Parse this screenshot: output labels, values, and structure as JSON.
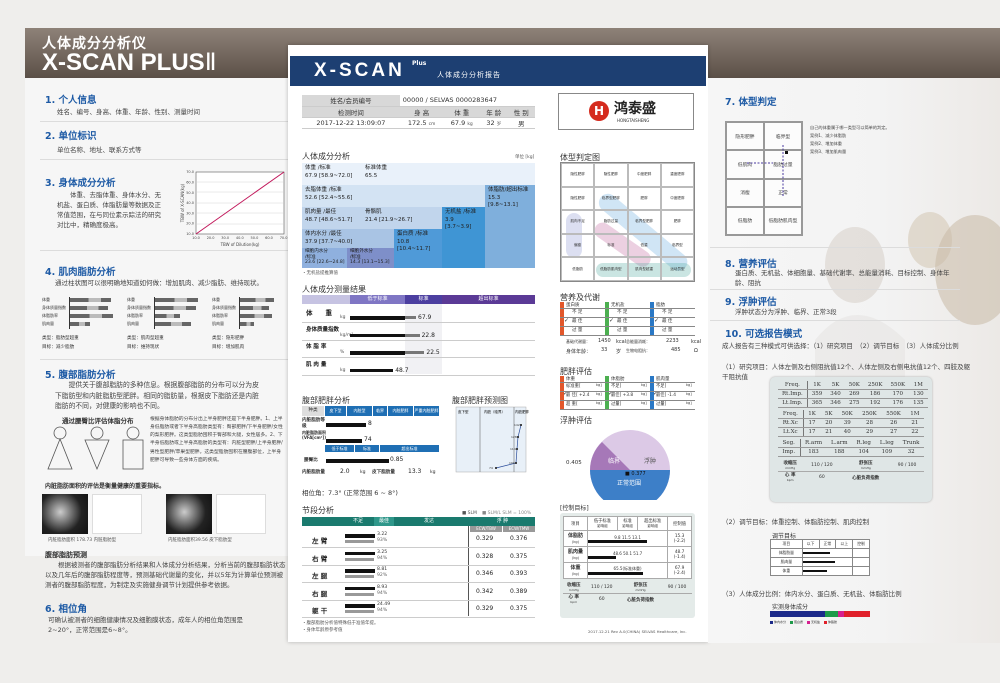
{
  "header": {
    "subtitle": "人体成分分析仪",
    "title": "X-SCAN PLUS",
    "roman": "Ⅱ"
  },
  "left": {
    "s1": {
      "title": "1. 个人信息",
      "text": "姓名、编号、身高、体重、年龄、性别、测量时间"
    },
    "s2": {
      "title": "2. 单位标识",
      "text": "单位名称、地址、联系方式等"
    },
    "s3": {
      "title": "3. 身体成分分析",
      "text": "体重、去脂体重、身体水分、无机盐、蛋白质、体脂肪量等数据及正常值范围，在与同位素示踪法的研究对比中，精确度极高。",
      "chart_xlabel": "TBW of Dilution(kg)",
      "chart_ylabel": "TBW of X-SCAN(kg)",
      "ticks": [
        "10.0",
        "20.0",
        "30.0",
        "40.0",
        "50.0",
        "60.0",
        "70.0"
      ]
    },
    "s4": {
      "title": "4. 肌肉脂肪分析",
      "text": "通过柱状图可以很明确地知道如何做：增加肌肉、减少脂肪、维持现状。",
      "rows": [
        "体重",
        "身体质量指数",
        "体脂肪率",
        "肌肉量"
      ],
      "cases": [
        {
          "type": "类型：脂肪型超重",
          "goal": "目标：减少脂肪",
          "vals": [
            0.9,
            0.85,
            0.95,
            0.45
          ]
        },
        {
          "type": "类型：肌肉型超重",
          "goal": "目标：维持现状",
          "vals": [
            0.95,
            0.9,
            0.55,
            0.8
          ]
        },
        {
          "type": "类型：隐形肥胖",
          "goal": "目标：增加肌肉",
          "vals": [
            0.75,
            0.65,
            0.7,
            0.3
          ]
        }
      ]
    },
    "s5": {
      "title": "5. 腹部脂肪分析",
      "text": "提供关于腹部脂肪的多种信息。根据腹部脂肪的分布可以分为皮下脂肪型和内脏脂肪型肥胖。相同的脂肪量，根据皮下脂肪还是内脏脂肪的不同，对健康的影响也不同。",
      "sub": "通过腰臀比评估体脂分布",
      "side": "根据身体脂肪的分布分出上半身肥胖还是下半身肥胖。1、上半身低脂肪或者下半身高脂肪类型有：臀部肥胖/下半身肥胖/女性的梨形肥胖。这类型脂肪囤积于臀部和大腿，女性居多。2、下半身低脂肪或上半身高脂肪的类型有：内脏型肥胖/上半身肥胖/男性型肥胖/苹果型肥胖。这类型脂肪囤积在腰腹部位，上半身肥胖可导致一些身体方面的疾病。",
      "vfa_title": "内脏脂肪面积的评估是衡量健康的重要指标。",
      "cap1": "内脏脂肪面积 178.73 内脏脂肪型",
      "cap2": "内脏脂肪面积39.56 皮下脂肪型",
      "pred_title": "腹部脂肪预测",
      "pred_text": "根据被测者的腹部脂肪分析结果和人体成分分析结果，分析当前的腹部脂肪状态以及几年后的腹部脂肪程度等，预测基础代谢量的变化，并以5年为计算单位预测被测者的腹部脂肪程度，为制定及实施健身调节计划提供参考依据。"
    },
    "s6": {
      "title": "6. 相位角",
      "text": "可确认被测者的细胞健康情况及细胞膜状态，成年人的相位角范围是2~20°，正常范围是6~8°。"
    }
  },
  "report": {
    "brand": "X-SCAN",
    "plus": "Plus",
    "title": "人体成分分析报告",
    "info": {
      "name_label": "姓名/会员编号",
      "name": "00000 / SELVAS 0000283647",
      "time_label": "检测时间",
      "time": "2017-12-22  13:09:07",
      "h_label": "身 高",
      "h": "172.5",
      "h_unit": "cm",
      "w_label": "体 重",
      "w": "67.9",
      "w_unit": "kg",
      "age_label": "年 龄",
      "age": "32",
      "age_unit": "岁",
      "sex_label": "性 别",
      "sex": "男"
    },
    "logo": {
      "name": "鸿泰盛",
      "sub": "HONGTAISHENG"
    },
    "comp": {
      "title": "人体成分分析",
      "unit": "单位 [kg]",
      "footnote": "・无机盐提推算值",
      "weight": "体重 /标准",
      "weight_v": "67.9 [58.9~72.0]",
      "std": "标准体重",
      "std_v": "65.5",
      "ffm": "去脂体重 /标准",
      "ffm_v": "52.6 [52.4~55.6]",
      "fat": "体脂肪/超出标准",
      "fat_v": "15.3",
      "fat_r": "[9.8~13.1]",
      "muscle": "肌肉量 /最佳",
      "muscle_v": "48.7 [48.6~51.7]",
      "smm": "骨骼肌",
      "smm_v": "21.4 [21.9~26.7]",
      "min": "无机盐 /标准",
      "min_v": "3.9",
      "min_r": "[3.7~3.9]",
      "tbw": "体内水分 /最佳",
      "tbw_v": "37.9 [37.7~40.0]",
      "prot": "蛋白质 /标准",
      "prot_v": "10.8",
      "prot_r": "[10.4~11.7]",
      "icw": "细胞内水分",
      "icw_s": "/标准",
      "icw_v": "23.6 [22.6~24.8]",
      "ecw": "细胞外水分",
      "ecw_s": "/标准",
      "ecw_v": "14.3 [13.1~15.3]"
    },
    "result": {
      "title": "人体成分测量结果",
      "heads": [
        "低于标准",
        "标准",
        "超出标准"
      ],
      "rows": [
        {
          "label": "体　　重",
          "unit": "kg",
          "value": "67.9",
          "frac": 0.55
        },
        {
          "label": "身体质量指数",
          "unit": "kg/m²",
          "value": "22.8",
          "frac": 0.58
        },
        {
          "label": "体 脂 率",
          "unit": "%",
          "value": "22.5",
          "frac": 0.62
        },
        {
          "label": "肌 肉 量",
          "unit": "kg",
          "value": "48.7",
          "frac": 0.36
        }
      ]
    },
    "abd": {
      "title": "腹部肥胖分析",
      "kind": "种类",
      "heads": [
        "皮下型",
        "内脏型",
        "临界",
        "内脏肥胖",
        "严重内脏肥胖"
      ],
      "r1": "内脏脂肪等级",
      "r1v": "8",
      "r2": "内脏脂肪面积(VFA[cm²])",
      "r2v": "74",
      "heads2": [
        "低于标准",
        "标准",
        "超出标准"
      ],
      "r3": "腰臀比",
      "r3v": "0.85",
      "r4": "内脏脂肪量",
      "r4v": "2.0",
      "r4u": "kg",
      "r5": "皮下脂肪量",
      "r5v": "13.3",
      "r5u": "kg"
    },
    "pred": {
      "title": "腹部肥胖预测图",
      "labels": [
        "皮下型",
        "内脏（临界）",
        "内脏肥胖"
      ],
      "points": [
        74,
        100,
        114,
        128,
        142
      ]
    },
    "phase": "相位角：7.3° (正常范围 6 ~ 8°)",
    "seg": {
      "title": "节段分析",
      "legend1": "■ SLM",
      "legend2": "■ SLM/L SLM = 100%",
      "heads": [
        "不足",
        "最佳",
        "发达",
        "浮 肿"
      ],
      "sub": [
        "ECW/TBW",
        "ECW/TMW"
      ],
      "rows": [
        {
          "label": "左 臂",
          "v": "3.22",
          "p": "93%",
          "e1": "0.329",
          "e2": "0.376"
        },
        {
          "label": "右 臂",
          "v": "3.25",
          "p": "94%",
          "e1": "0.328",
          "e2": "0.375"
        },
        {
          "label": "左 腿",
          "v": "8.81",
          "p": "92%",
          "e1": "0.346",
          "e2": "0.393"
        },
        {
          "label": "右 腿",
          "v": "8.93",
          "p": "94%",
          "e1": "0.342",
          "e2": "0.389"
        },
        {
          "label": "躯 干",
          "v": "24.49",
          "p": "94%",
          "e1": "0.329",
          "e2": "0.375"
        }
      ],
      "notes": [
        "・腹部脂肪分析值特殊低于准值年提。",
        "・身体年龄原参考值"
      ]
    },
    "bodytype": {
      "title": "体型判定图",
      "cells": [
        "隐性肥胖",
        "隐性肥胖",
        "中度肥胖",
        "重度肥胖",
        "隐性肥胖",
        "临界型肥胖",
        "肥胖",
        "中度肥胖",
        "肌肉不足",
        "脂肪过量",
        "临界型肥胖",
        "肥胖",
        "偏瘦",
        "标准",
        "低重",
        "临界型",
        "低脂肪",
        "低脂肪肌肉型",
        "肌肉型超重",
        "运动员型"
      ]
    },
    "nutri": {
      "title": "营养及代谢",
      "cols": [
        {
          "tag": "蛋白质",
          "color": "#e2572b"
        },
        {
          "tag": "无机盐",
          "color": "#4caf50"
        },
        {
          "tag": "脂肪",
          "color": "#2a78c5"
        }
      ],
      "levels": [
        "不 足",
        "最 佳",
        "过 量"
      ],
      "bmr_label": "基础代谢量：",
      "bmr": "1450",
      "bmr_u": "kcal",
      "tee_label": "总能量消耗：",
      "tee": "2233",
      "tee_u": "kcal",
      "age_label": "身体年龄：",
      "age": "33",
      "age_u": "岁",
      "imp_label": "生物电阻抗：",
      "imp": "485",
      "imp_u": "Ω"
    },
    "obese": {
      "title": "肥胖评估",
      "cols": [
        "体重",
        "体脂肪",
        "肌肉量"
      ],
      "r1": [
        "标准重[",
        "不足[",
        "不足["
      ],
      "r2": [
        "最 佳[ +2.4",
        "最佳[",
        "最佳[ -1.4"
      ],
      "r2b": [
        "",
        "+3.8",
        ""
      ],
      "r3": [
        "超 重[",
        "过量[",
        "过量["
      ],
      "unit": "kg]"
    },
    "edema": {
      "title": "浮肿评估",
      "labels": [
        "临界",
        "浮肿",
        "正常范围"
      ],
      "value": "■ 0.377",
      "left": "0.405",
      "value_num": 0.377
    },
    "control": {
      "title": "[控制目标]",
      "heads": [
        "项目",
        "低于标准",
        "标准",
        "超出标准",
        "控制值"
      ],
      "sub": "影响组",
      "rows": [
        {
          "label": "体脂肪",
          "unit": "(kg)",
          "a": "9.8",
          "b": "11.5",
          "c": "13.1",
          "ctrl": "15.3",
          "ctrl2": "(-2.2)"
        },
        {
          "label": "肌肉量",
          "unit": "(kg)",
          "a": "48.6",
          "b": "50.1",
          "c": "51.7",
          "ctrl": "48.7",
          "ctrl2": "(-1.4)"
        },
        {
          "label": "体重",
          "unit": "(kg)",
          "a": "65.5(标准体重)",
          "b": "",
          "c": "",
          "ctrl": "67.9",
          "ctrl2": "(-2.4)"
        }
      ],
      "bp1": "收缩压",
      "bp1u": "mmHg",
      "bp1v": "110 / 120",
      "bp2": "舒张压",
      "bp2u": "mmHg",
      "bp2v": "90 / 100",
      "hr": "心 率",
      "hru": "bpm",
      "hrv": "60",
      "cardiac": "心脏负荷指数"
    },
    "footer": "2017.12.21 Rev A.0(CHINA) SELVAS Healthcare, Inc."
  },
  "right": {
    "s7": {
      "title": "7. 体型判定",
      "cells": [
        "隐形肥胖",
        "临界型",
        "低肌肉",
        "脂肪过量",
        "消瘦",
        "正常",
        "低脂肪",
        "低脂肪肌肉型"
      ],
      "notes": [
        "自己的体重属于哪一类型可以简单的判定。",
        "案例1、减少体脂肪",
        "案例2、增加体重",
        "案例3、增加肌肉量"
      ]
    },
    "s8": {
      "title": "8. 营养评估",
      "text": "蛋白质、无机盐、体细胞量、基础代谢率、总能量消耗、目标控制、身体年龄、阻抗"
    },
    "s9": {
      "title": "9. 浮肿评估",
      "text": "浮肿状态分为浮肿、临界、正常3段"
    },
    "s10": {
      "title": "10. 可选报告模式",
      "text": "成人报告有三种模式可供选择：（1）研究项目　（2）调节目标　（3）人体成分比例",
      "m1": "（1）研究项目：人体左侧及右侧阻抗值12个、人体左侧及右侧电抗值12个、四肢及躯干阻抗值",
      "t1": [
        [
          "Freq.",
          "1K",
          "5K",
          "50K",
          "250K",
          "550K",
          "1M"
        ],
        [
          "Rt.Imp.",
          "359",
          "340",
          "269",
          "186",
          "170",
          "130"
        ],
        [
          "Lt.Imp.",
          "365",
          "346",
          "275",
          "192",
          "176",
          "135"
        ]
      ],
      "t2": [
        [
          "Freq.",
          "1K",
          "5K",
          "50K",
          "250K",
          "550K",
          "1M"
        ],
        [
          "Rt.Xc",
          "17",
          "20",
          "39",
          "28",
          "26",
          "21"
        ],
        [
          "Lt.Xc",
          "17",
          "21",
          "40",
          "29",
          "27",
          "22"
        ]
      ],
      "t3": [
        [
          "Seg.",
          "R.arm",
          "L.arm",
          "R.leg",
          "L.leg",
          "Trunk"
        ],
        [
          "Imp.",
          "183",
          "188",
          "104",
          "109",
          "32"
        ]
      ],
      "bp1": "收缩压",
      "bp1u": "mmHg",
      "bp1v": "110 / 120",
      "bp2": "舒张压",
      "bp2u": "mmHg",
      "bp2v": "90 / 100",
      "hr": "心 率",
      "hru": "bpm",
      "hrv": "60",
      "cardiac": "心脏负荷指数",
      "m2": "（2）调节目标：体重控制、体脂肪控制、肌肉控制",
      "adj_title": "调节目标",
      "adj_heads": [
        "项目",
        "以下",
        "正常",
        "以上",
        "控制"
      ],
      "adj_rows": [
        "体脂肪量",
        "肌肉量",
        "体重"
      ],
      "m3": "（3）人体成分比例：体内水分、蛋白质、无机盐、体脂肪比例",
      "ratio_title": "实测身体成分",
      "ratio": [
        {
          "name": "体内水分",
          "color": "#1c2a8a",
          "pct": 55
        },
        {
          "name": "蛋白质",
          "color": "#1f9a4a",
          "pct": 13
        },
        {
          "name": "无机盐",
          "color": "#d6208f",
          "pct": 6
        },
        {
          "name": "体脂肪",
          "color": "#e0202a",
          "pct": 26
        }
      ]
    }
  }
}
